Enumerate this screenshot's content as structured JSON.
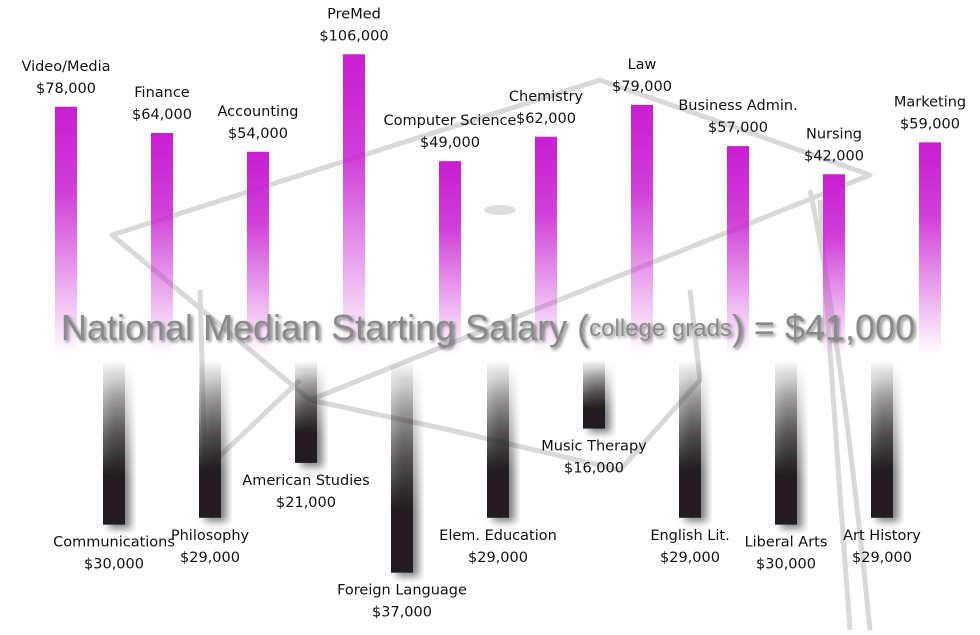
{
  "chart_data": {
    "type": "bar",
    "median_label": {
      "prefix": "National Median Starting Salary (",
      "small": "college grads",
      "suffix": ") = $41,000"
    },
    "above": {
      "color": "#c81ed2",
      "categories": [
        "Video/Media",
        "Finance",
        "Accounting",
        "PreMed",
        "Computer Science",
        "Chemistry",
        "Law",
        "Business Admin.",
        "Nursing",
        "Marketing"
      ],
      "values": [
        78000,
        64000,
        54000,
        106000,
        49000,
        62000,
        79000,
        57000,
        42000,
        59000
      ],
      "value_labels": [
        "$78,000",
        "$64,000",
        "$54,000",
        "$106,000",
        "$49,000",
        "$62,000",
        "$79,000",
        "$57,000",
        "$42,000",
        "$59,000"
      ]
    },
    "below": {
      "color": "#231f20",
      "categories": [
        "Communications",
        "Philosophy",
        "American Studies",
        "Foreign Language",
        "Elem. Education",
        "Music Therapy",
        "English Lit.",
        "Liberal Arts",
        "Art History"
      ],
      "values": [
        30000,
        29000,
        21000,
        37000,
        29000,
        16000,
        29000,
        30000,
        29000
      ],
      "value_labels": [
        "$30,000",
        "$29,000",
        "$21,000",
        "$37,000",
        "$29,000",
        "$16,000",
        "$29,000",
        "$30,000",
        "$29,000"
      ]
    }
  }
}
